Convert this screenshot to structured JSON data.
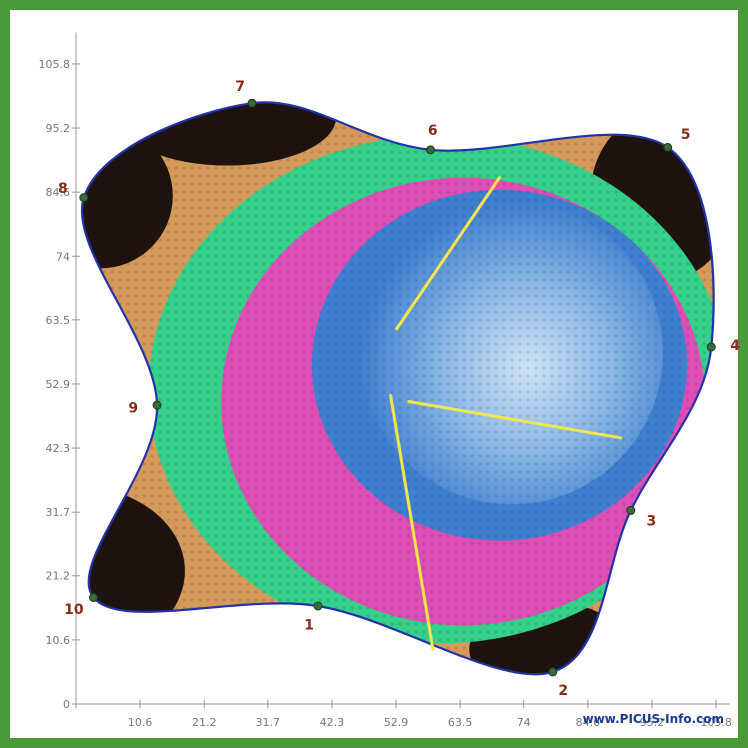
{
  "colors": {
    "frame": "#4a9a3a",
    "outline": "#2233aa",
    "vectors": "#f2e64a",
    "dark": "#1e130e",
    "brown": "#d59a5a",
    "green": "#35d08a",
    "magenta": "#dd4fb5",
    "blue": "#3f7fd0",
    "lightblue": "#9ec6ea",
    "pointlabel": "#8a2a1a",
    "axis": "#999999"
  },
  "chart_data": {
    "type": "heatmap",
    "title": "",
    "xlabel": "",
    "ylabel": "",
    "xlim": [
      0,
      108
    ],
    "ylim": [
      0,
      108
    ],
    "x_ticks": [
      "0",
      "10.6",
      "21.2",
      "31.7",
      "42.3",
      "52.9",
      "63.5",
      "74",
      "84.6",
      "95.2",
      "105.8"
    ],
    "y_ticks": [
      "0",
      "10.6",
      "21.2",
      "31.7",
      "42.3",
      "52.9",
      "63.5",
      "74",
      "84.6",
      "95.2",
      "105.8"
    ],
    "x_tick_values": [
      0,
      10.6,
      21.2,
      31.7,
      42.3,
      52.9,
      63.5,
      74,
      84.6,
      95.2,
      105.8
    ],
    "y_tick_values": [
      0,
      10.6,
      21.2,
      31.7,
      42.3,
      52.9,
      63.5,
      74,
      84.6,
      95.2,
      105.8
    ],
    "measurement_points": [
      {
        "label": "1",
        "x": 40.0,
        "y": 16.2
      },
      {
        "label": "2",
        "x": 78.8,
        "y": 5.3
      },
      {
        "label": "3",
        "x": 91.7,
        "y": 32.0
      },
      {
        "label": "4",
        "x": 105.0,
        "y": 59.0
      },
      {
        "label": "5",
        "x": 97.8,
        "y": 92.0
      },
      {
        "label": "6",
        "x": 58.6,
        "y": 91.6
      },
      {
        "label": "7",
        "x": 29.1,
        "y": 99.3
      },
      {
        "label": "8",
        "x": 1.3,
        "y": 83.7
      },
      {
        "label": "9",
        "x": 13.4,
        "y": 49.4
      },
      {
        "label": "10",
        "x": 2.9,
        "y": 17.6
      }
    ],
    "vectors": [
      {
        "from": [
          53.0,
          62.0
        ],
        "to": [
          70.0,
          87.0
        ]
      },
      {
        "from": [
          52.0,
          51.0
        ],
        "to": [
          59.0,
          9.0
        ]
      },
      {
        "from": [
          55.0,
          50.0
        ],
        "to": [
          90.0,
          44.0
        ]
      }
    ],
    "legend": []
  },
  "credit": "www.PICUS-Info.com"
}
